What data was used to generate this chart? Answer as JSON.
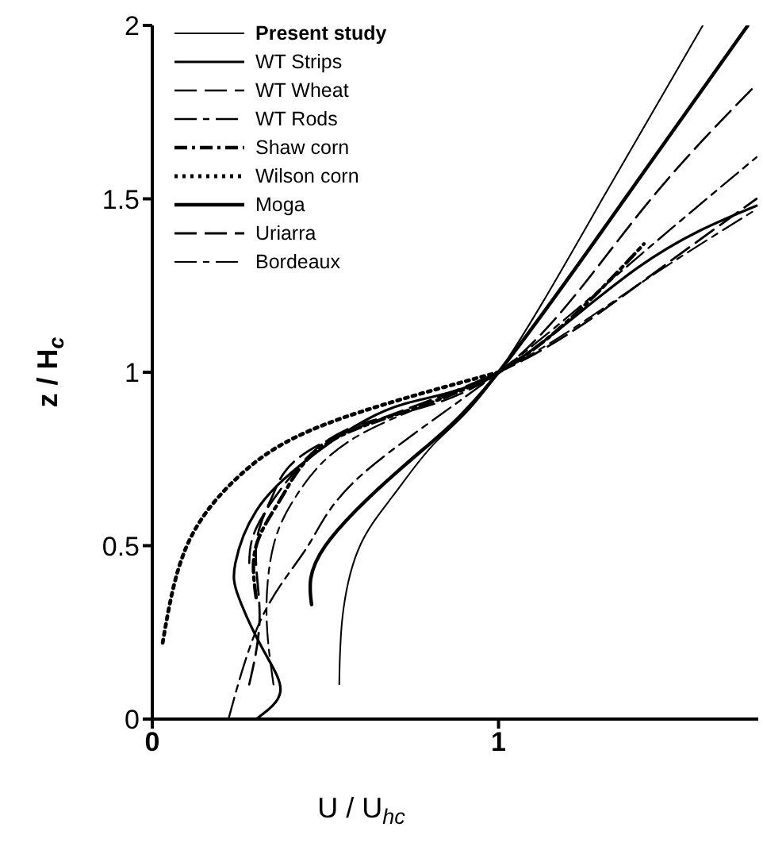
{
  "chart_data": {
    "type": "line",
    "xlabel": "U / U$_{hc}$",
    "ylabel": "z / H$_{c}$",
    "xlim": [
      0,
      1.75
    ],
    "xticks": [
      0,
      1
    ],
    "ylim": [
      0,
      2
    ],
    "yticks": [
      0,
      0.5,
      1,
      1.5,
      2
    ],
    "legend": "top left",
    "marker": "none",
    "series": [
      {
        "name": "Present study",
        "color": "#000000",
        "line_style": "solid",
        "x": [
          0.54,
          0.55,
          0.6,
          0.7,
          0.82,
          1,
          1.3,
          1.59
        ],
        "values": [
          0.1,
          0.3,
          0.5,
          0.65,
          0.8,
          1,
          1.5,
          2
        ]
      },
      {
        "name": "WT  Strips",
        "color": "#000000",
        "line_style": "solid",
        "x": [
          0.3,
          0.37,
          0.32,
          0.25,
          0.24,
          0.3,
          0.45,
          0.7,
          1,
          1.4,
          1.745
        ],
        "values": [
          0,
          0.08,
          0.2,
          0.35,
          0.45,
          0.6,
          0.75,
          0.9,
          1,
          1.3,
          1.48
        ]
      },
      {
        "name": "WT  Wheat",
        "color": "#000000",
        "line_style": "dashed",
        "x": [
          0.28,
          0.3,
          0.4,
          0.6,
          1,
          1.4,
          1.745
        ],
        "values": [
          0.45,
          0.55,
          0.7,
          0.85,
          1,
          1.45,
          1.83
        ]
      },
      {
        "name": "WT  Rods",
        "color": "#000000",
        "line_style": "dashed",
        "x": [
          0.22,
          0.32,
          0.45,
          0.6,
          1,
          1.4,
          1.745
        ],
        "values": [
          0,
          0.3,
          0.5,
          0.7,
          1,
          1.33,
          1.62
        ]
      },
      {
        "name": "Shaw  corn",
        "color": "#000000",
        "line_style": "dashed",
        "x": [
          0.3,
          0.3,
          0.38,
          0.55,
          1,
          1.42
        ],
        "values": [
          0.35,
          0.5,
          0.65,
          0.82,
          1,
          1.37
        ]
      },
      {
        "name": "Wilson  corn",
        "color": "#000000",
        "line_style": "dotted",
        "x": [
          0.03,
          0.1,
          0.25,
          0.5,
          1
        ],
        "values": [
          0.22,
          0.5,
          0.7,
          0.85,
          1
        ]
      },
      {
        "name": "Moga",
        "color": "#000000",
        "line_style": "solid",
        "x": [
          0.46,
          0.5,
          0.75,
          1,
          1.4,
          1.72
        ],
        "values": [
          0.33,
          0.5,
          0.75,
          1,
          1.55,
          2
        ]
      },
      {
        "name": "Uriarra",
        "color": "#000000",
        "line_style": "dashed",
        "x": [
          0.28,
          0.31,
          0.3,
          0.35,
          0.5,
          1,
          1.4,
          1.745
        ],
        "values": [
          0.1,
          0.3,
          0.5,
          0.65,
          0.8,
          1,
          1.25,
          1.5
        ]
      },
      {
        "name": "Bordeaux",
        "color": "#000000",
        "line_style": "dashed",
        "x": [
          0.35,
          0.33,
          0.35,
          0.42,
          0.6,
          1,
          1.4,
          1.745
        ],
        "values": [
          0.1,
          0.3,
          0.5,
          0.65,
          0.82,
          1,
          1.25,
          1.47
        ]
      }
    ]
  }
}
